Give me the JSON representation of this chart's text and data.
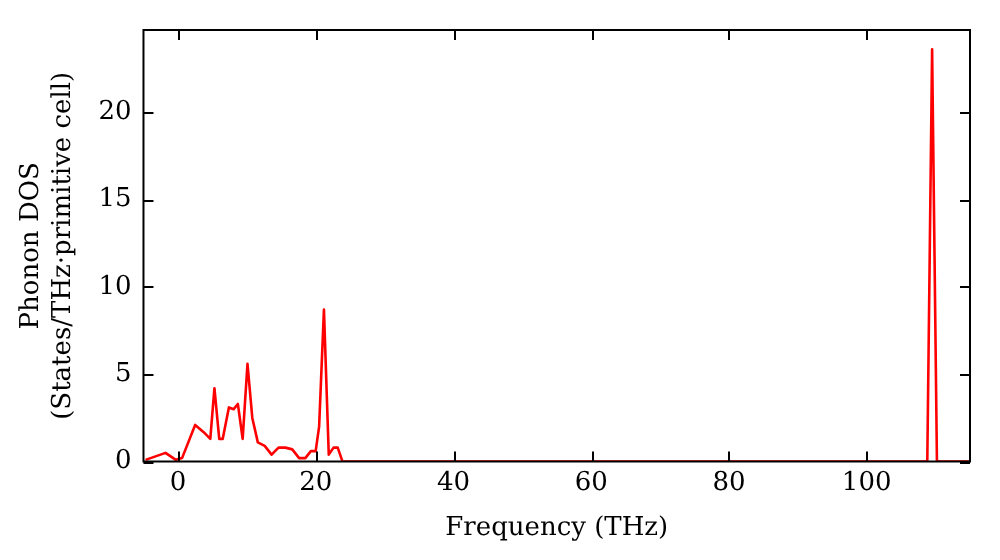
{
  "chart_data": {
    "type": "line",
    "xlabel": "Frequency (THz)",
    "ylabel": "Phonon DOS\n(States/THz·primitive cell)",
    "xlim": [
      -5,
      115
    ],
    "ylim": [
      0,
      24.7
    ],
    "xticks": [
      0,
      20,
      40,
      60,
      80,
      100
    ],
    "yticks": [
      0,
      5,
      10,
      15,
      20
    ],
    "grid": false,
    "legend": false,
    "marker": "none",
    "line_style": "solid",
    "series": [
      {
        "color": "#ff0000",
        "x": [
          -4.7,
          -1.8,
          -0.3,
          0.6,
          2.5,
          3.7,
          4.7,
          5.3,
          6.0,
          6.5,
          7.4,
          8.1,
          8.7,
          9.4,
          10.1,
          10.8,
          11.6,
          12.6,
          13.6,
          14.6,
          15.6,
          16.6,
          17.6,
          18.5,
          19.3,
          20.0,
          20.5,
          21.2,
          21.9,
          22.6,
          23.2,
          23.9,
          40,
          60,
          80,
          100,
          108.8,
          109.5,
          110.2,
          115
        ],
        "values": [
          0.1,
          0.5,
          0.1,
          0.2,
          2.1,
          1.7,
          1.3,
          4.2,
          1.3,
          1.3,
          3.1,
          3.0,
          3.3,
          1.3,
          5.6,
          2.5,
          1.1,
          0.9,
          0.4,
          0.8,
          0.8,
          0.7,
          0.2,
          0.2,
          0.6,
          0.6,
          2.0,
          8.7,
          0.4,
          0.8,
          0.8,
          0,
          0,
          0,
          0,
          0,
          0,
          23.6,
          0,
          0
        ]
      }
    ]
  }
}
